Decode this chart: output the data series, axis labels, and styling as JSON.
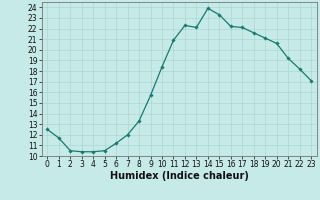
{
  "x": [
    0,
    1,
    2,
    3,
    4,
    5,
    6,
    7,
    8,
    9,
    10,
    11,
    12,
    13,
    14,
    15,
    16,
    17,
    18,
    19,
    20,
    21,
    22,
    23
  ],
  "y": [
    12.5,
    11.7,
    10.5,
    10.4,
    10.4,
    10.5,
    11.2,
    12.0,
    13.3,
    15.7,
    18.4,
    20.9,
    22.3,
    22.1,
    23.9,
    23.3,
    22.2,
    22.1,
    21.6,
    21.1,
    20.6,
    19.2,
    18.2,
    17.1
  ],
  "line_color": "#1a7a6e",
  "marker": "D",
  "marker_size": 1.8,
  "bg_color": "#c5eae7",
  "grid_color": "#a8d4d0",
  "xlabel": "Humidex (Indice chaleur)",
  "xlim": [
    -0.5,
    23.5
  ],
  "ylim": [
    10,
    24.5
  ],
  "yticks": [
    10,
    11,
    12,
    13,
    14,
    15,
    16,
    17,
    18,
    19,
    20,
    21,
    22,
    23,
    24
  ],
  "xticks": [
    0,
    1,
    2,
    3,
    4,
    5,
    6,
    7,
    8,
    9,
    10,
    11,
    12,
    13,
    14,
    15,
    16,
    17,
    18,
    19,
    20,
    21,
    22,
    23
  ],
  "tick_fontsize": 5.5,
  "label_fontsize": 7,
  "line_width": 0.9
}
